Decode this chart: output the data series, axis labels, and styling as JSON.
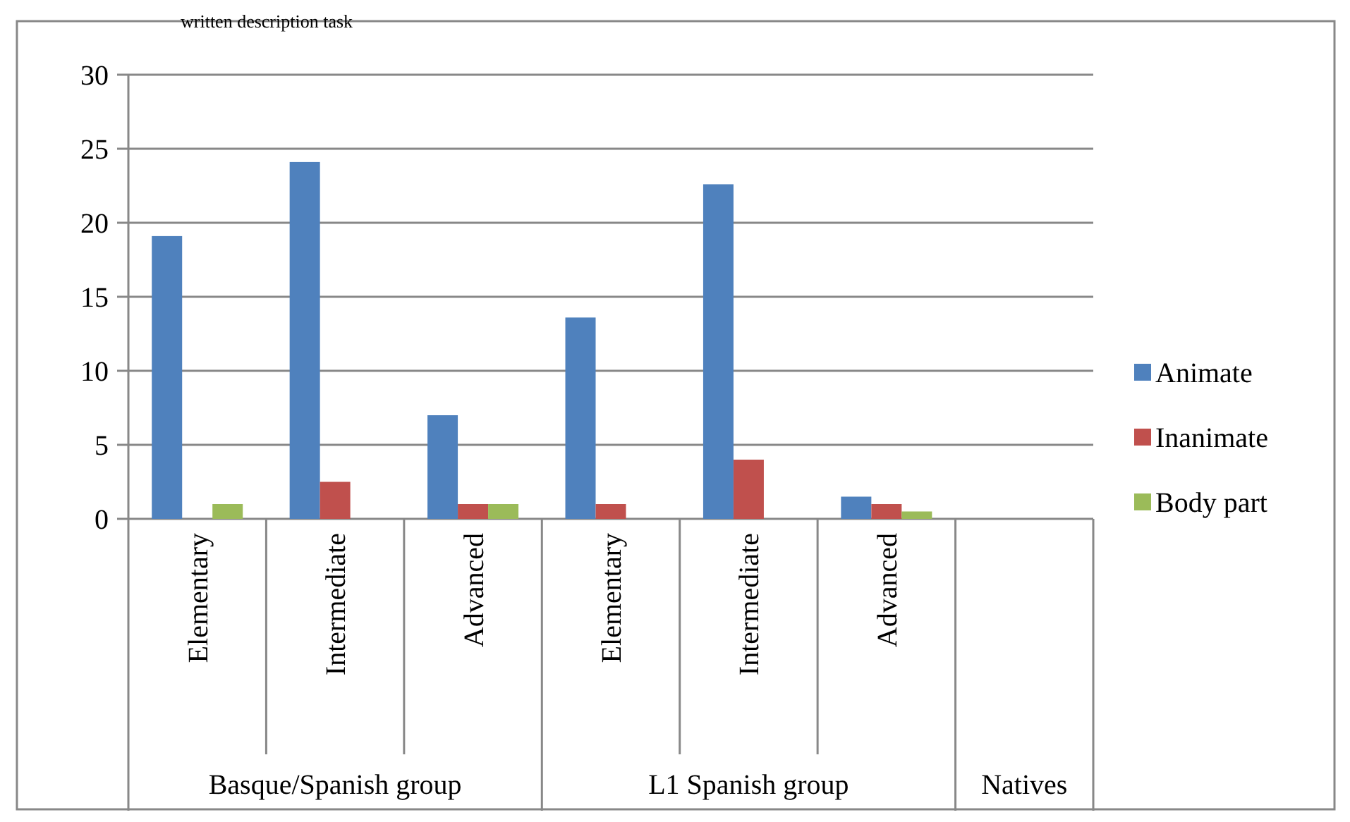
{
  "chart_data": {
    "type": "bar",
    "title": "written description task",
    "categories": [
      "Elementary",
      "Intermediate",
      "Advanced",
      "Elementary",
      "Intermediate",
      "Advanced",
      null
    ],
    "series": [
      {
        "name": "Animate",
        "color": "#4f81bd",
        "values": [
          19.1,
          24.1,
          7,
          13.6,
          22.6,
          1.5,
          0
        ]
      },
      {
        "name": "Inanimate",
        "color": "#c0504d",
        "values": [
          0,
          2.5,
          1,
          1,
          4,
          1,
          0
        ]
      },
      {
        "name": "Body part",
        "color": "#9bbb59",
        "values": [
          1,
          0,
          1,
          0,
          0,
          0.5,
          0
        ]
      }
    ],
    "annotations": [
      "Basque/Spanish group",
      "L1 Spanish group",
      "Natives"
    ],
    "ylim": [
      0,
      30
    ],
    "yticks": [
      0,
      5,
      10,
      15,
      20,
      25,
      30
    ],
    "grid": "y",
    "legend": "right"
  }
}
